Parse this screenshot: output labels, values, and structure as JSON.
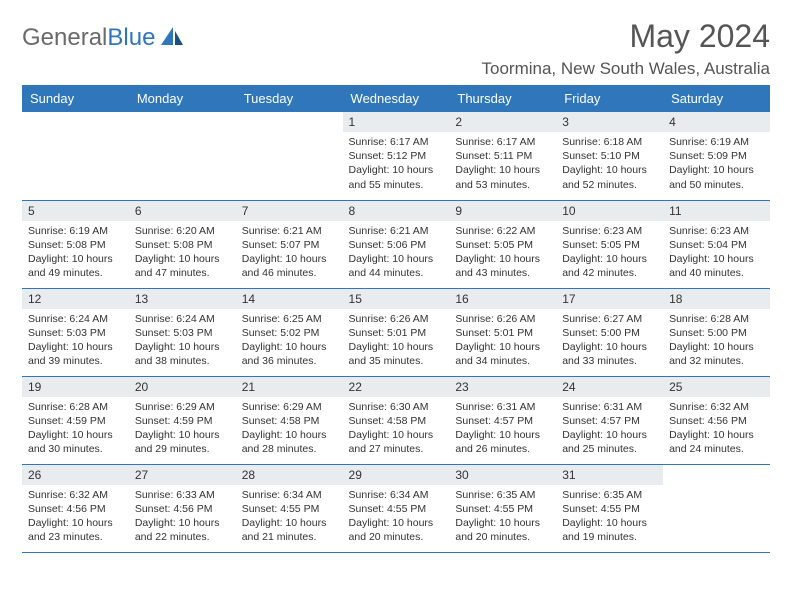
{
  "logo": {
    "text1": "General",
    "text2": "Blue"
  },
  "header": {
    "title": "May 2024",
    "location": "Toormina, New South Wales, Australia"
  },
  "colors": {
    "accent": "#2f76bb",
    "daynum_bg": "#e9ecef",
    "text": "#333333",
    "header_text": "#555555"
  },
  "day_headers": [
    "Sunday",
    "Monday",
    "Tuesday",
    "Wednesday",
    "Thursday",
    "Friday",
    "Saturday"
  ],
  "weeks": [
    [
      {
        "day": "",
        "lines": []
      },
      {
        "day": "",
        "lines": []
      },
      {
        "day": "",
        "lines": []
      },
      {
        "day": "1",
        "lines": [
          "Sunrise: 6:17 AM",
          "Sunset: 5:12 PM",
          "Daylight: 10 hours and 55 minutes."
        ]
      },
      {
        "day": "2",
        "lines": [
          "Sunrise: 6:17 AM",
          "Sunset: 5:11 PM",
          "Daylight: 10 hours and 53 minutes."
        ]
      },
      {
        "day": "3",
        "lines": [
          "Sunrise: 6:18 AM",
          "Sunset: 5:10 PM",
          "Daylight: 10 hours and 52 minutes."
        ]
      },
      {
        "day": "4",
        "lines": [
          "Sunrise: 6:19 AM",
          "Sunset: 5:09 PM",
          "Daylight: 10 hours and 50 minutes."
        ]
      }
    ],
    [
      {
        "day": "5",
        "lines": [
          "Sunrise: 6:19 AM",
          "Sunset: 5:08 PM",
          "Daylight: 10 hours and 49 minutes."
        ]
      },
      {
        "day": "6",
        "lines": [
          "Sunrise: 6:20 AM",
          "Sunset: 5:08 PM",
          "Daylight: 10 hours and 47 minutes."
        ]
      },
      {
        "day": "7",
        "lines": [
          "Sunrise: 6:21 AM",
          "Sunset: 5:07 PM",
          "Daylight: 10 hours and 46 minutes."
        ]
      },
      {
        "day": "8",
        "lines": [
          "Sunrise: 6:21 AM",
          "Sunset: 5:06 PM",
          "Daylight: 10 hours and 44 minutes."
        ]
      },
      {
        "day": "9",
        "lines": [
          "Sunrise: 6:22 AM",
          "Sunset: 5:05 PM",
          "Daylight: 10 hours and 43 minutes."
        ]
      },
      {
        "day": "10",
        "lines": [
          "Sunrise: 6:23 AM",
          "Sunset: 5:05 PM",
          "Daylight: 10 hours and 42 minutes."
        ]
      },
      {
        "day": "11",
        "lines": [
          "Sunrise: 6:23 AM",
          "Sunset: 5:04 PM",
          "Daylight: 10 hours and 40 minutes."
        ]
      }
    ],
    [
      {
        "day": "12",
        "lines": [
          "Sunrise: 6:24 AM",
          "Sunset: 5:03 PM",
          "Daylight: 10 hours and 39 minutes."
        ]
      },
      {
        "day": "13",
        "lines": [
          "Sunrise: 6:24 AM",
          "Sunset: 5:03 PM",
          "Daylight: 10 hours and 38 minutes."
        ]
      },
      {
        "day": "14",
        "lines": [
          "Sunrise: 6:25 AM",
          "Sunset: 5:02 PM",
          "Daylight: 10 hours and 36 minutes."
        ]
      },
      {
        "day": "15",
        "lines": [
          "Sunrise: 6:26 AM",
          "Sunset: 5:01 PM",
          "Daylight: 10 hours and 35 minutes."
        ]
      },
      {
        "day": "16",
        "lines": [
          "Sunrise: 6:26 AM",
          "Sunset: 5:01 PM",
          "Daylight: 10 hours and 34 minutes."
        ]
      },
      {
        "day": "17",
        "lines": [
          "Sunrise: 6:27 AM",
          "Sunset: 5:00 PM",
          "Daylight: 10 hours and 33 minutes."
        ]
      },
      {
        "day": "18",
        "lines": [
          "Sunrise: 6:28 AM",
          "Sunset: 5:00 PM",
          "Daylight: 10 hours and 32 minutes."
        ]
      }
    ],
    [
      {
        "day": "19",
        "lines": [
          "Sunrise: 6:28 AM",
          "Sunset: 4:59 PM",
          "Daylight: 10 hours and 30 minutes."
        ]
      },
      {
        "day": "20",
        "lines": [
          "Sunrise: 6:29 AM",
          "Sunset: 4:59 PM",
          "Daylight: 10 hours and 29 minutes."
        ]
      },
      {
        "day": "21",
        "lines": [
          "Sunrise: 6:29 AM",
          "Sunset: 4:58 PM",
          "Daylight: 10 hours and 28 minutes."
        ]
      },
      {
        "day": "22",
        "lines": [
          "Sunrise: 6:30 AM",
          "Sunset: 4:58 PM",
          "Daylight: 10 hours and 27 minutes."
        ]
      },
      {
        "day": "23",
        "lines": [
          "Sunrise: 6:31 AM",
          "Sunset: 4:57 PM",
          "Daylight: 10 hours and 26 minutes."
        ]
      },
      {
        "day": "24",
        "lines": [
          "Sunrise: 6:31 AM",
          "Sunset: 4:57 PM",
          "Daylight: 10 hours and 25 minutes."
        ]
      },
      {
        "day": "25",
        "lines": [
          "Sunrise: 6:32 AM",
          "Sunset: 4:56 PM",
          "Daylight: 10 hours and 24 minutes."
        ]
      }
    ],
    [
      {
        "day": "26",
        "lines": [
          "Sunrise: 6:32 AM",
          "Sunset: 4:56 PM",
          "Daylight: 10 hours and 23 minutes."
        ]
      },
      {
        "day": "27",
        "lines": [
          "Sunrise: 6:33 AM",
          "Sunset: 4:56 PM",
          "Daylight: 10 hours and 22 minutes."
        ]
      },
      {
        "day": "28",
        "lines": [
          "Sunrise: 6:34 AM",
          "Sunset: 4:55 PM",
          "Daylight: 10 hours and 21 minutes."
        ]
      },
      {
        "day": "29",
        "lines": [
          "Sunrise: 6:34 AM",
          "Sunset: 4:55 PM",
          "Daylight: 10 hours and 20 minutes."
        ]
      },
      {
        "day": "30",
        "lines": [
          "Sunrise: 6:35 AM",
          "Sunset: 4:55 PM",
          "Daylight: 10 hours and 20 minutes."
        ]
      },
      {
        "day": "31",
        "lines": [
          "Sunrise: 6:35 AM",
          "Sunset: 4:55 PM",
          "Daylight: 10 hours and 19 minutes."
        ]
      },
      {
        "day": "",
        "lines": []
      }
    ]
  ]
}
